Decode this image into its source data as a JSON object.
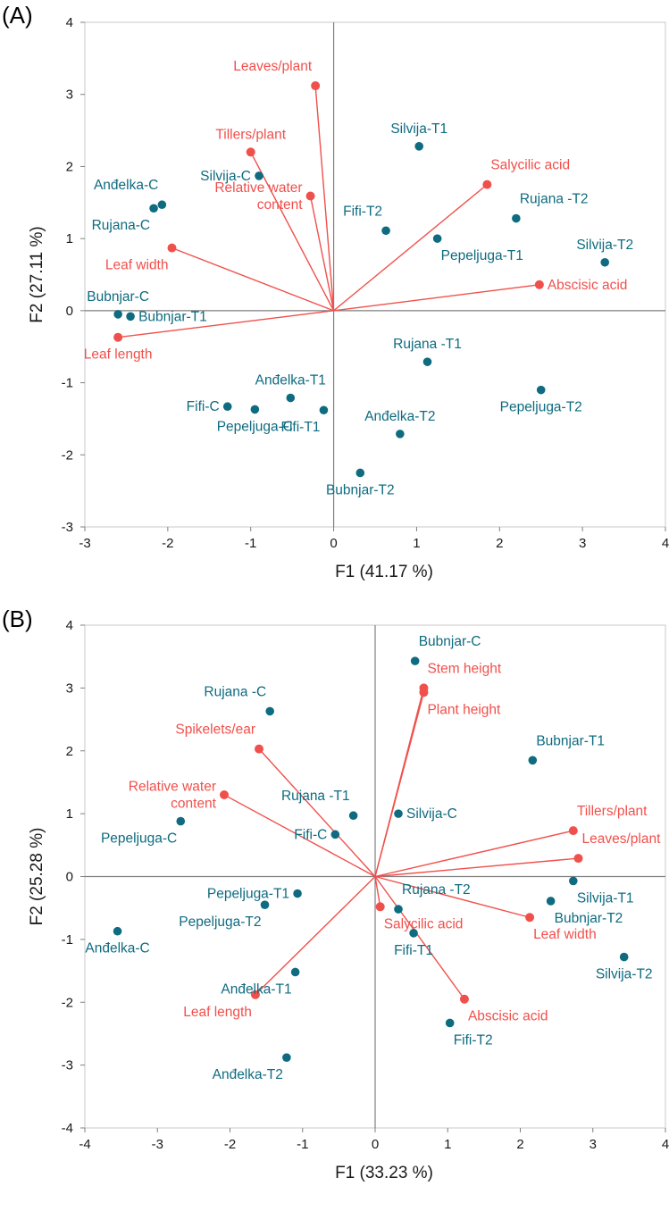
{
  "colors": {
    "observation": "#0e6b80",
    "variable": "#f0504c",
    "axis_line": "#7f7f7f",
    "frame": "#c8c8c8",
    "text": "#1a1a1a"
  },
  "chart_data": [
    {
      "panel_label": "(A)",
      "type": "scatter",
      "xlabel": "F1 (41.17 %)",
      "ylabel": "F2 (27.11 %)",
      "xlim": [
        -3,
        4
      ],
      "ylim": [
        -3,
        4
      ],
      "xticks": [
        "-3",
        "-2",
        "-1",
        "0",
        "1",
        "2",
        "3",
        "4"
      ],
      "yticks": [
        "-3",
        "-2",
        "-1",
        "0",
        "1",
        "2",
        "3",
        "4"
      ],
      "observations": [
        {
          "label": "Silvija-T1",
          "x": 1.03,
          "y": 2.28,
          "label_pos": "above"
        },
        {
          "label": "Anđelka-C",
          "x": -2.07,
          "y": 1.47,
          "label_pos": "above-left"
        },
        {
          "label": "Rujana-C",
          "x": -2.17,
          "y": 1.42,
          "label_pos": "below-left"
        },
        {
          "label": "Silvija-C",
          "x": -0.9,
          "y": 1.87,
          "label_pos": "left"
        },
        {
          "label": "Fifi-T2",
          "x": 0.63,
          "y": 1.11,
          "label_pos": "above-left"
        },
        {
          "label": "Pepeljuga-T1",
          "x": 1.25,
          "y": 1.0,
          "label_pos": "below-right"
        },
        {
          "label": "Rujana -T2",
          "x": 2.2,
          "y": 1.28,
          "label_pos": "above-right"
        },
        {
          "label": "Silvija-T2",
          "x": 3.27,
          "y": 0.67,
          "label_pos": "above"
        },
        {
          "label": "Bubnjar-C",
          "x": -2.6,
          "y": -0.05,
          "label_pos": "above"
        },
        {
          "label": "Bubnjar-T1",
          "x": -2.45,
          "y": -0.08,
          "label_pos": "right"
        },
        {
          "label": "Rujana -T1",
          "x": 1.13,
          "y": -0.71,
          "label_pos": "above"
        },
        {
          "label": "Pepeljuga-T2",
          "x": 2.5,
          "y": -1.1,
          "label_pos": "below"
        },
        {
          "label": "Anđelka-T1",
          "x": -0.52,
          "y": -1.21,
          "label_pos": "above"
        },
        {
          "label": "Fifi-C",
          "x": -1.28,
          "y": -1.33,
          "label_pos": "left"
        },
        {
          "label": "Pepeljuga-C",
          "x": -0.95,
          "y": -1.37,
          "label_pos": "below"
        },
        {
          "label": "Fifi-T1",
          "x": -0.12,
          "y": -1.38,
          "label_pos": "below-left"
        },
        {
          "label": "Anđelka-T2",
          "x": 0.8,
          "y": -1.71,
          "label_pos": "above"
        },
        {
          "label": "Bubnjar-T2",
          "x": 0.32,
          "y": -2.25,
          "label_pos": "below"
        }
      ],
      "variables": [
        {
          "label": "Leaves/plant",
          "x": -0.22,
          "y": 3.12,
          "label_pos": "above-left"
        },
        {
          "label": "Tillers/plant",
          "x": -1.0,
          "y": 2.2,
          "label_pos": "above"
        },
        {
          "label": "Relative water\ncontent",
          "x": -0.28,
          "y": 1.59,
          "label_pos": "left"
        },
        {
          "label": "Salycilic acid",
          "x": 1.85,
          "y": 1.75,
          "label_pos": "above-right"
        },
        {
          "label": "Leaf width",
          "x": -1.95,
          "y": 0.87,
          "label_pos": "below-left"
        },
        {
          "label": "Abscisic acid",
          "x": 2.48,
          "y": 0.36,
          "label_pos": "right"
        },
        {
          "label": "Leaf length",
          "x": -2.6,
          "y": -0.37,
          "label_pos": "below"
        }
      ]
    },
    {
      "panel_label": "(B)",
      "type": "scatter",
      "xlabel": "F1 (33.23 %)",
      "ylabel": "F2 (25.28 %)",
      "xlim": [
        -4,
        4
      ],
      "ylim": [
        -4,
        4
      ],
      "xticks": [
        "-4",
        "-3",
        "-2",
        "-1",
        "0",
        "1",
        "2",
        "3",
        "4"
      ],
      "yticks": [
        "-4",
        "-3",
        "-2",
        "-1",
        "0",
        "1",
        "2",
        "3",
        "4"
      ],
      "observations": [
        {
          "label": "Bubnjar-C",
          "x": 0.55,
          "y": 3.43,
          "label_pos": "above-right"
        },
        {
          "label": "Rujana -C",
          "x": -1.45,
          "y": 2.63,
          "label_pos": "above-left"
        },
        {
          "label": "Bubnjar-T1",
          "x": 2.17,
          "y": 1.85,
          "label_pos": "above-right"
        },
        {
          "label": "Silvija-C",
          "x": 0.32,
          "y": 1.0,
          "label_pos": "right"
        },
        {
          "label": "Rujana -T1",
          "x": -0.3,
          "y": 0.97,
          "label_pos": "above-left"
        },
        {
          "label": "Fifi-C",
          "x": -0.55,
          "y": 0.67,
          "label_pos": "left"
        },
        {
          "label": "Pepeljuga-C",
          "x": -2.68,
          "y": 0.88,
          "label_pos": "below-left"
        },
        {
          "label": "Pepeljuga-T1",
          "x": -1.07,
          "y": -0.27,
          "label_pos": "left"
        },
        {
          "label": "Pepeljuga-T2",
          "x": -1.52,
          "y": -0.45,
          "label_pos": "below-left"
        },
        {
          "label": "Anđelka-C",
          "x": -3.55,
          "y": -0.87,
          "label_pos": "below"
        },
        {
          "label": "Rujana -T2",
          "x": 0.32,
          "y": -0.52,
          "label_pos": "above-right"
        },
        {
          "label": "Fifi-T1",
          "x": 0.53,
          "y": -0.9,
          "label_pos": "below"
        },
        {
          "label": "Silvija-T1",
          "x": 2.73,
          "y": -0.07,
          "label_pos": "below-right"
        },
        {
          "label": "Bubnjar-T2",
          "x": 2.42,
          "y": -0.39,
          "label_pos": "below-right"
        },
        {
          "label": "Silvija-T2",
          "x": 3.43,
          "y": -1.28,
          "label_pos": "below"
        },
        {
          "label": "Anđelka-T1",
          "x": -1.1,
          "y": -1.52,
          "label_pos": "below-left"
        },
        {
          "label": "Fifi-T2",
          "x": 1.03,
          "y": -2.33,
          "label_pos": "below-right"
        },
        {
          "label": "Anđelka-T2",
          "x": -1.22,
          "y": -2.88,
          "label_pos": "below-left"
        }
      ],
      "variables": [
        {
          "label": "Stem height",
          "x": 0.67,
          "y": 3.0,
          "label_pos": "above-right"
        },
        {
          "label": "Plant height",
          "x": 0.67,
          "y": 2.93,
          "label_pos": "below-right"
        },
        {
          "label": "Spikelets/ear",
          "x": -1.6,
          "y": 2.03,
          "label_pos": "above-left"
        },
        {
          "label": "Relative water\ncontent",
          "x": -2.08,
          "y": 1.3,
          "label_pos": "left"
        },
        {
          "label": "Tillers/plant",
          "x": 2.73,
          "y": 0.73,
          "label_pos": "above-right"
        },
        {
          "label": "Leaves/plant",
          "x": 2.8,
          "y": 0.29,
          "label_pos": "above-right"
        },
        {
          "label": "Salycilic acid",
          "x": 0.07,
          "y": -0.48,
          "label_pos": "below-right"
        },
        {
          "label": "Leaf width",
          "x": 2.13,
          "y": -0.65,
          "label_pos": "below-right"
        },
        {
          "label": "Abscisic acid",
          "x": 1.23,
          "y": -1.95,
          "label_pos": "below-right"
        },
        {
          "label": "Leaf length",
          "x": -1.65,
          "y": -1.88,
          "label_pos": "below-left"
        }
      ]
    }
  ]
}
